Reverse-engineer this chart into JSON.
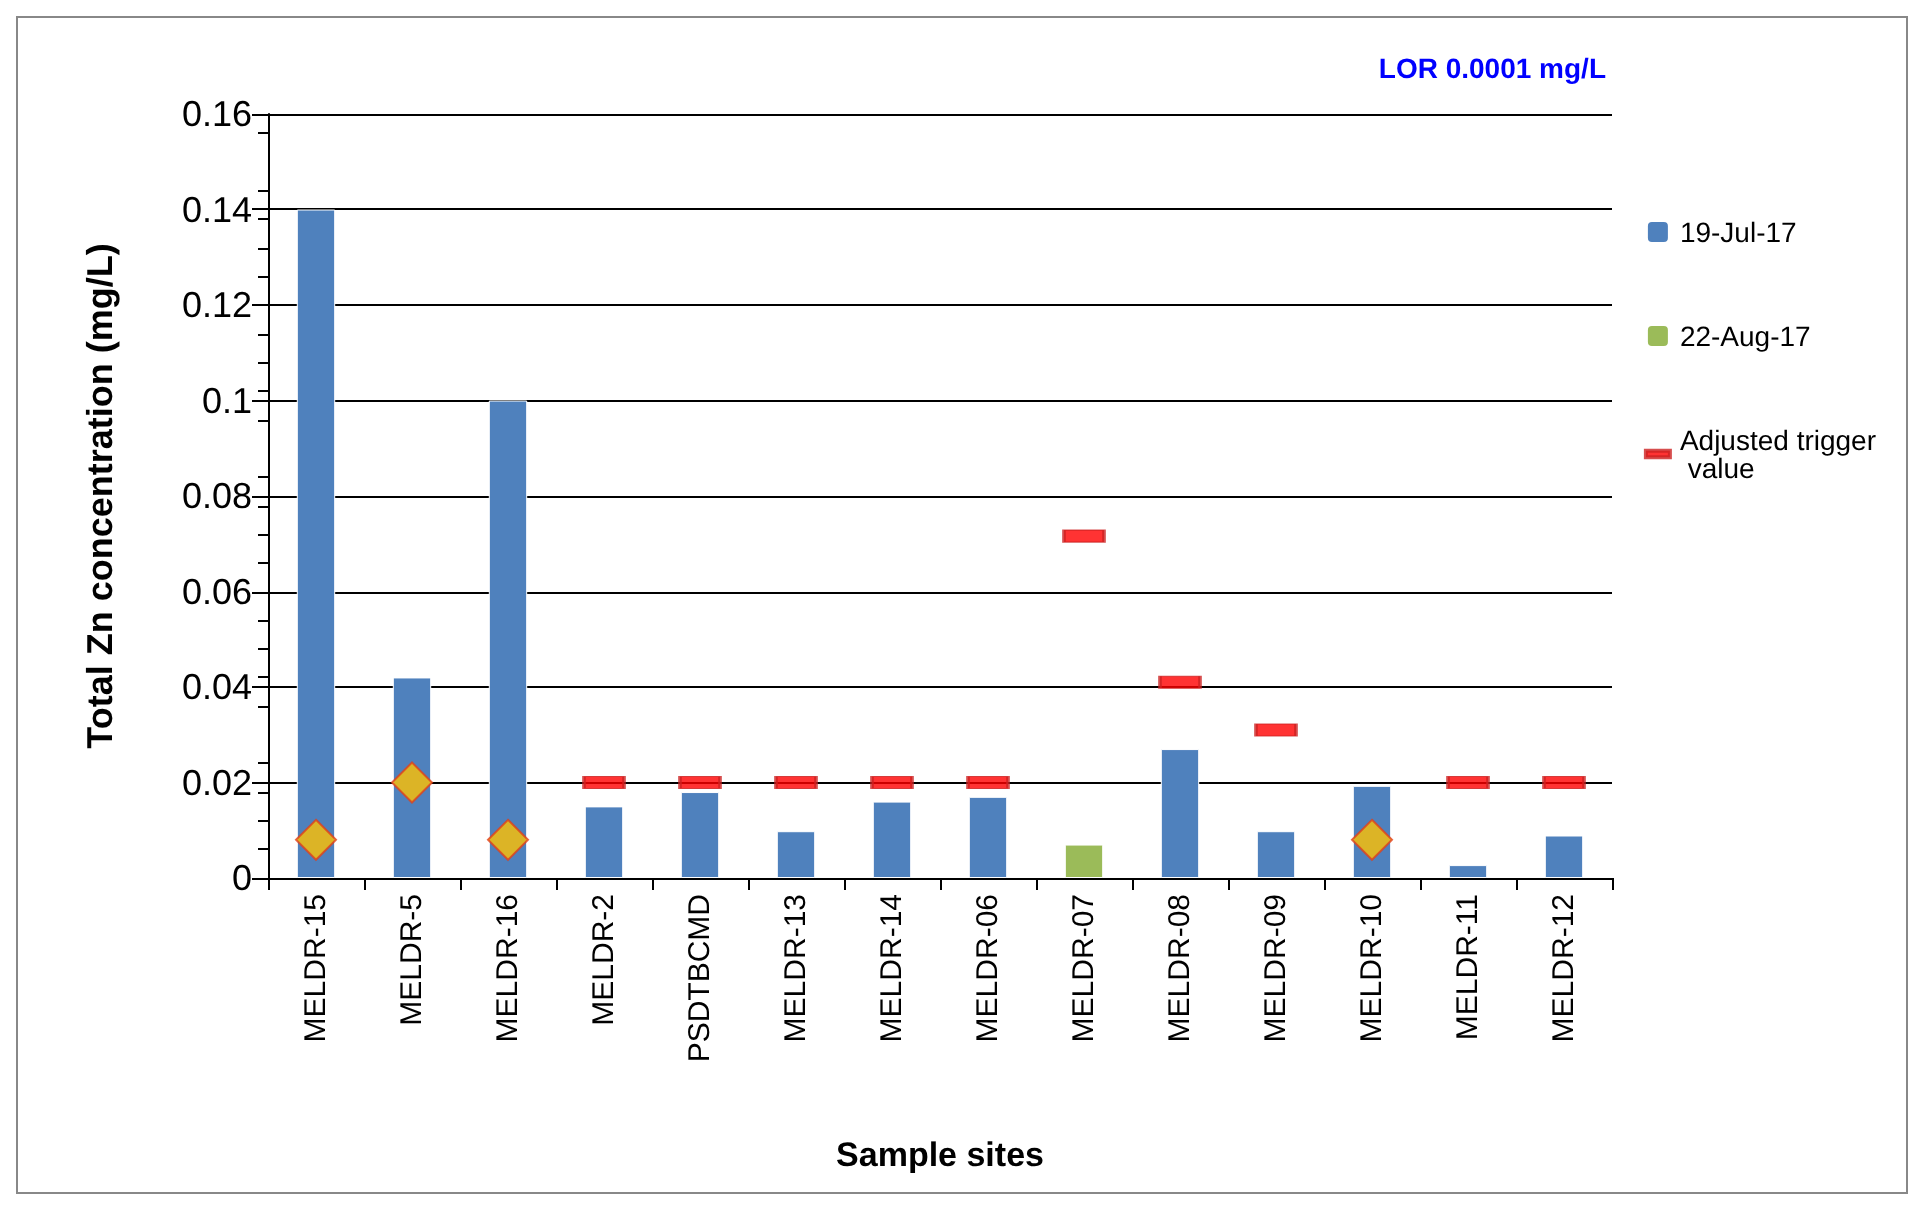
{
  "chart_data": {
    "type": "bar",
    "xlabel": "Sample sites",
    "ylabel": "Total Zn concentration (mg/L)",
    "annotations": [
      "LOR 0.0001 mg/L"
    ],
    "categories": [
      "MELDR-15",
      "MELDR-5",
      "MELDR-16",
      "MELDR-2",
      "PSDTBCMD",
      "MELDR-13",
      "MELDR-14",
      "MELDR-06",
      "MELDR-07",
      "MELDR-08",
      "MELDR-09",
      "MELDR-10",
      "MELDR-11",
      "MELDR-12"
    ],
    "series": [
      {
        "name": "19-Jul-17",
        "color": "#4f81bd",
        "values": [
          0.14,
          0.042,
          0.1,
          0.015,
          0.018,
          0.0098,
          0.016,
          0.017,
          null,
          0.027,
          0.0098,
          0.0193,
          0.0027,
          0.0089
        ]
      },
      {
        "name": "22-Aug-17",
        "color": "#9bbb59",
        "values": [
          null,
          null,
          null,
          null,
          null,
          null,
          null,
          null,
          0.007,
          null,
          null,
          null,
          null,
          null
        ]
      },
      {
        "name": "Adjusted trigger value",
        "type": "scatter",
        "color": "#ff0000",
        "values": [
          null,
          null,
          null,
          0.02,
          0.02,
          0.02,
          0.02,
          0.02,
          0.0716,
          0.041,
          0.031,
          null,
          0.02,
          0.02
        ]
      },
      {
        "type": "scatter",
        "marker": "diamond",
        "color": "#ffc000",
        "values": [
          0.008,
          0.02,
          0.008,
          null,
          null,
          null,
          null,
          null,
          null,
          null,
          null,
          0.008,
          null,
          null
        ]
      }
    ],
    "ylim": [
      0,
      0.16
    ],
    "yticks": [
      0,
      0.02,
      0.04,
      0.06,
      0.08,
      0.1,
      0.12,
      0.14,
      0.16
    ],
    "grid": "y",
    "legend": "right"
  }
}
